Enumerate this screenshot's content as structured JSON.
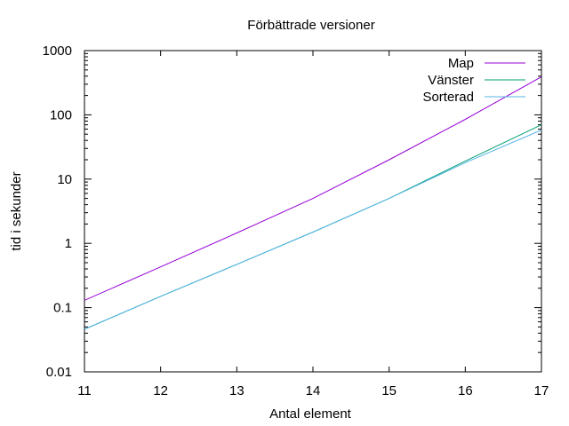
{
  "chart_data": {
    "type": "line",
    "title": "Förbättrade versioner",
    "xlabel": "Antal element",
    "ylabel": "tid i sekunder",
    "xlim": [
      11,
      17
    ],
    "ylim": [
      0.01,
      1000
    ],
    "yscale": "log",
    "grid": false,
    "legend_position": "top-right",
    "x_ticks": [
      "11",
      "12",
      "13",
      "14",
      "15",
      "16",
      "17"
    ],
    "y_ticks": [
      "0.01",
      "0.1",
      "1",
      "10",
      "100",
      "1000"
    ],
    "series": [
      {
        "name": "Map",
        "color": "#9400d3",
        "x": [
          11,
          12,
          13,
          14,
          15,
          16,
          17
        ],
        "y": [
          0.13,
          0.43,
          1.45,
          5.0,
          20,
          85,
          390
        ]
      },
      {
        "name": "Vänster",
        "color": "#009e73",
        "x": [
          11,
          12,
          13,
          14,
          15,
          16,
          17
        ],
        "y": [
          0.046,
          0.15,
          0.47,
          1.5,
          5.0,
          19,
          70
        ]
      },
      {
        "name": "Sorterad",
        "color": "#56b4e9",
        "x": [
          11,
          12,
          13,
          14,
          15,
          16,
          17
        ],
        "y": [
          0.046,
          0.15,
          0.47,
          1.5,
          5.0,
          18,
          58
        ]
      }
    ]
  }
}
